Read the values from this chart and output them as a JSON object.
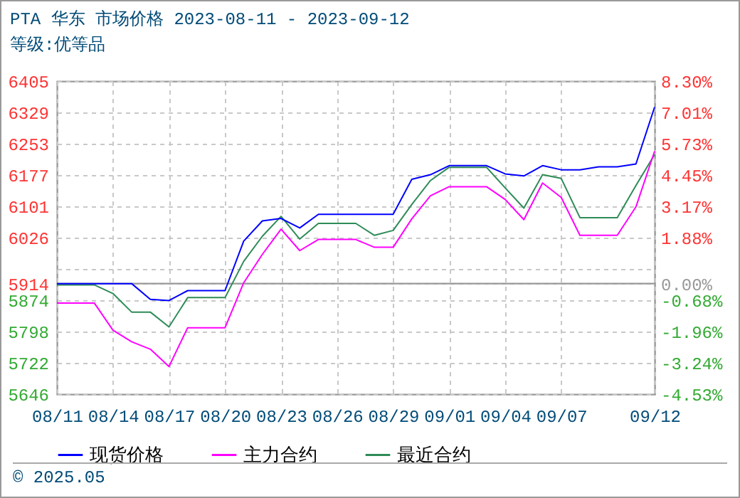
{
  "chart_data": {
    "type": "line",
    "title": "PTA 华东 市场价格 2023-08-11 - 2023-09-12",
    "subtitle": "等级:优等品",
    "x": [
      "2023-08-11",
      "2023-08-12",
      "2023-08-13",
      "2023-08-14",
      "2023-08-15",
      "2023-08-16",
      "2023-08-17",
      "2023-08-18",
      "2023-08-19",
      "2023-08-20",
      "2023-08-21",
      "2023-08-22",
      "2023-08-23",
      "2023-08-24",
      "2023-08-25",
      "2023-08-26",
      "2023-08-27",
      "2023-08-28",
      "2023-08-29",
      "2023-08-30",
      "2023-08-31",
      "2023-09-01",
      "2023-09-02",
      "2023-09-03",
      "2023-09-04",
      "2023-09-05",
      "2023-09-06",
      "2023-09-07",
      "2023-09-08",
      "2023-09-09",
      "2023-09-10",
      "2023-09-11",
      "2023-09-12"
    ],
    "series": [
      {
        "name": "现货价格",
        "color": "#0000ff",
        "values": [
          5914,
          5914,
          5914,
          5914,
          5914,
          5876,
          5873,
          5897,
          5897,
          5897,
          6017,
          6066,
          6072,
          6049,
          6082,
          6082,
          6082,
          6082,
          6082,
          6167,
          6178,
          6200,
          6200,
          6200,
          6180,
          6175,
          6200,
          6190,
          6190,
          6197,
          6197,
          6204,
          6342
        ]
      },
      {
        "name": "主力合约",
        "color": "#ff00ff",
        "values": [
          5867,
          5867,
          5867,
          5801,
          5773,
          5755,
          5713,
          5807,
          5807,
          5807,
          5916,
          5985,
          6046,
          5994,
          6021,
          6021,
          6021,
          6002,
          6002,
          6071,
          6127,
          6149,
          6149,
          6149,
          6118,
          6069,
          6158,
          6123,
          6031,
          6031,
          6031,
          6100,
          6235
        ]
      },
      {
        "name": "最近合约",
        "color": "#2e8b57",
        "values": [
          5911,
          5911,
          5911,
          5890,
          5845,
          5845,
          5809,
          5880,
          5880,
          5880,
          5968,
          6029,
          6077,
          6022,
          6060,
          6060,
          6060,
          6031,
          6043,
          6106,
          6164,
          6196,
          6196,
          6196,
          6146,
          6097,
          6178,
          6169,
          6074,
          6074,
          6074,
          6152,
          6227
        ]
      }
    ],
    "xlim": [
      "2023-08-11",
      "2023-09-12"
    ],
    "xticks": [
      {
        "value": "2023-08-11",
        "label": "08/11"
      },
      {
        "value": "2023-08-14",
        "label": "08/14"
      },
      {
        "value": "2023-08-17",
        "label": "08/17"
      },
      {
        "value": "2023-08-20",
        "label": "08/20"
      },
      {
        "value": "2023-08-23",
        "label": "08/23"
      },
      {
        "value": "2023-08-26",
        "label": "08/26"
      },
      {
        "value": "2023-08-29",
        "label": "08/29"
      },
      {
        "value": "2023-09-01",
        "label": "09/01"
      },
      {
        "value": "2023-09-04",
        "label": "09/04"
      },
      {
        "value": "2023-09-07",
        "label": "09/07"
      },
      {
        "value": "2023-09-12",
        "label": "09/12"
      }
    ],
    "ylim": [
      5646,
      6405
    ],
    "yticks": [
      5646,
      5722,
      5798,
      5874,
      5914,
      {
        "value": 5950,
        "label": null
      },
      6026,
      6101,
      6177,
      6253,
      6329,
      6405
    ],
    "y2lim": [
      -4.53,
      8.3
    ],
    "y2ticks": [
      {
        "value": -4.53,
        "label": "-4.53%"
      },
      {
        "value": -3.24,
        "label": "-3.24%"
      },
      {
        "value": -1.96,
        "label": "-1.96%"
      },
      {
        "value": -0.68,
        "label": "-0.68%"
      },
      {
        "value": 0,
        "label": "0.00%"
      },
      {
        "value": 1.88,
        "label": "1.88%"
      },
      {
        "value": 3.17,
        "label": "3.17%"
      },
      {
        "value": 4.45,
        "label": "4.45%"
      },
      {
        "value": 5.73,
        "label": "5.73%"
      },
      {
        "value": 7.01,
        "label": "7.01%"
      },
      {
        "value": 8.3,
        "label": "8.30%"
      }
    ],
    "ref_lines": [
      {
        "axis": "y2",
        "value": 0,
        "color": "#999999"
      }
    ],
    "grid": true,
    "legend": "bottom",
    "marker": "none",
    "line_style": "solid",
    "annotations": [
      "© 2025.05"
    ]
  }
}
